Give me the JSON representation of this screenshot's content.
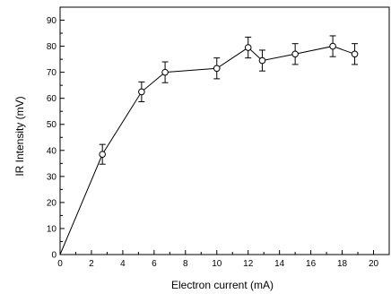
{
  "chart_data": {
    "type": "line",
    "title": "",
    "xlabel": "Electron current (mA)",
    "ylabel": "IR Intensity (mV)",
    "xlim": [
      0,
      21
    ],
    "ylim": [
      0,
      95
    ],
    "x_ticks": [
      0,
      2,
      4,
      6,
      8,
      10,
      12,
      14,
      16,
      18,
      20
    ],
    "y_ticks": [
      0,
      10,
      20,
      30,
      40,
      50,
      60,
      70,
      80,
      90
    ],
    "grid": false,
    "legend": "none",
    "marker": "open-circle",
    "line_color": "#000000",
    "series": [
      {
        "x": [
          0,
          2.7,
          5.2,
          6.7,
          10.0,
          12.0,
          12.9,
          15.0,
          17.4,
          18.8
        ],
        "y": [
          0,
          38.5,
          62.5,
          70.0,
          71.5,
          79.5,
          74.5,
          77.0,
          80.0,
          77.0
        ],
        "error": [
          0,
          3.8,
          3.8,
          4.0,
          4.0,
          4.0,
          4.0,
          4.0,
          4.0,
          4.0
        ]
      }
    ]
  }
}
